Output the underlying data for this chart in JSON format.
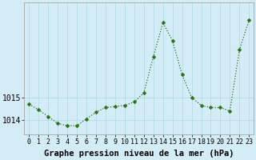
{
  "hours": [
    0,
    1,
    2,
    3,
    4,
    5,
    6,
    7,
    8,
    9,
    10,
    11,
    12,
    13,
    14,
    15,
    16,
    17,
    18,
    19,
    20,
    21,
    22,
    23
  ],
  "pressure": [
    1014.7,
    1014.45,
    1014.15,
    1013.85,
    1013.75,
    1013.75,
    1014.05,
    1014.35,
    1014.55,
    1014.6,
    1014.65,
    1014.8,
    1015.2,
    1016.8,
    1018.3,
    1017.5,
    1016.0,
    1015.0,
    1014.65,
    1014.55,
    1014.55,
    1014.4,
    1017.1,
    1018.4
  ],
  "line_color": "#2d6e1e",
  "marker_color": "#2d6e1e",
  "bg_color": "#d4ecf5",
  "grid_color": "#b0d4e4",
  "ylabel_ticks": [
    1014,
    1015
  ],
  "xlabel": "Graphe pression niveau de la mer (hPa)",
  "ylim_min": 1013.35,
  "ylim_max": 1019.2,
  "tick_fontsize": 6,
  "label_fontsize": 7.5
}
